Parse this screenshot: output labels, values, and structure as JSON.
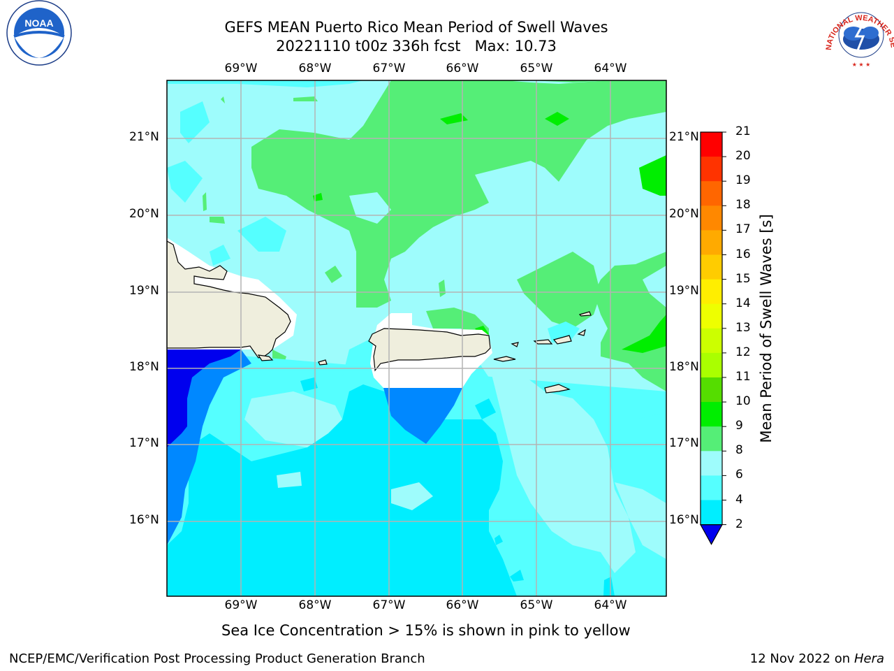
{
  "header": {
    "title_line1": "GEFS MEAN Puerto Rico Mean Period of Swell Waves",
    "title_line2": "20221110 t00z 336h fcst   Max: 10.73"
  },
  "map": {
    "lon_labels": [
      "69°W",
      "68°W",
      "67°W",
      "66°W",
      "65°W",
      "64°W"
    ],
    "lat_labels": [
      "21°N",
      "20°N",
      "19°N",
      "18°N",
      "17°N",
      "16°N"
    ],
    "land_color": "#efeedd",
    "ocean_dominant_color": "#9efcfc"
  },
  "colorbar": {
    "label": "Mean Period of Swell Waves [s]",
    "ticks": [
      "21",
      "20",
      "19",
      "18",
      "17",
      "16",
      "15",
      "14",
      "13",
      "12",
      "11",
      "10",
      "9",
      "8",
      "6",
      "4",
      "2"
    ],
    "colors": [
      "#ff0000",
      "#ff3300",
      "#ff6600",
      "#ff8800",
      "#ffaa00",
      "#ffcc00",
      "#ffee00",
      "#eeff00",
      "#ccff00",
      "#aaff00",
      "#55dd00",
      "#00ee00",
      "#55ee77",
      "#9efcfc",
      "#55ffff",
      "#00eeff",
      "#0088ff",
      "#0000ee"
    ]
  },
  "caption": "Sea Ice Concentration > 15% is shown in pink to yellow",
  "footer": {
    "left": "NCEP/EMC/Verification Post Processing Product Generation Branch",
    "date": "12 Nov 2022 on",
    "host": "Hera"
  },
  "logos": {
    "noaa_text": "NOAA",
    "nws_text": "NATIONAL WEATHER SERVICE"
  }
}
